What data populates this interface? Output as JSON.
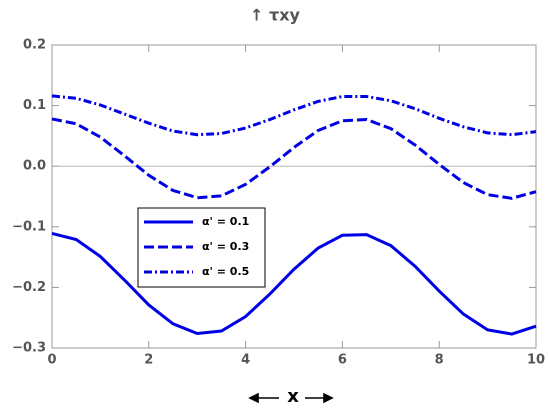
{
  "chart_data": {
    "type": "line",
    "title": "↑ τxy",
    "xlabel": "x",
    "x": [
      0,
      0.5,
      1,
      1.5,
      2,
      2.5,
      3,
      3.5,
      4,
      4.5,
      5,
      5.5,
      6,
      6.5,
      7,
      7.5,
      8,
      8.5,
      9,
      9.5,
      10
    ],
    "series": [
      {
        "name": "α' = 0.1",
        "color": "#0000e6",
        "dash": "solid",
        "values": [
          -0.111,
          -0.121,
          -0.149,
          -0.188,
          -0.229,
          -0.26,
          -0.276,
          -0.272,
          -0.248,
          -0.211,
          -0.17,
          -0.135,
          -0.114,
          -0.113,
          -0.131,
          -0.165,
          -0.206,
          -0.244,
          -0.27,
          -0.277,
          -0.264
        ]
      },
      {
        "name": "α' = 0.3",
        "color": "#0000e6",
        "dash": "dashed",
        "values": [
          0.078,
          0.07,
          0.048,
          0.017,
          -0.015,
          -0.04,
          -0.052,
          -0.049,
          -0.03,
          -0.001,
          0.031,
          0.059,
          0.075,
          0.077,
          0.062,
          0.035,
          0.003,
          -0.027,
          -0.047,
          -0.053,
          -0.042
        ]
      },
      {
        "name": "α' = 0.5",
        "color": "#0000e6",
        "dash": "dashdot",
        "values": [
          0.116,
          0.112,
          0.101,
          0.086,
          0.071,
          0.058,
          0.052,
          0.054,
          0.063,
          0.077,
          0.093,
          0.107,
          0.115,
          0.115,
          0.108,
          0.095,
          0.079,
          0.065,
          0.055,
          0.052,
          0.057
        ]
      }
    ],
    "xlim": [
      0,
      10
    ],
    "xticks": [
      0,
      2,
      4,
      6,
      8,
      10
    ],
    "ylim": [
      -0.3,
      0.2
    ],
    "yticks": [
      {
        "value": -0.3,
        "label": "−0.3"
      },
      {
        "value": -0.2,
        "label": "−0.2"
      },
      {
        "value": -0.1,
        "label": "−0.1"
      },
      {
        "value": 0,
        "label": "0.0"
      },
      0.1,
      0.2
    ],
    "zero_line": true
  }
}
